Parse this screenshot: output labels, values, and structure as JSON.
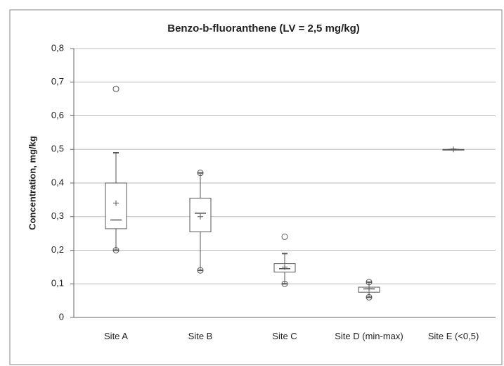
{
  "chart_data": {
    "type": "box",
    "title": "Benzo-b-fluoranthene (LV = 2,5 mg/kg)",
    "y_label": "Concentration, mg/kg",
    "categories": [
      "Site A",
      "Site B",
      "Site C",
      "Site D (min-max)",
      "Site E (<0,5)"
    ],
    "boxes": [
      {
        "min": 0.2,
        "q1": 0.264,
        "median": 0.29,
        "q3": 0.4,
        "max": 0.49,
        "mean": 0.34,
        "outliers": [
          0.68,
          0.2
        ]
      },
      {
        "min": 0.14,
        "q1": 0.255,
        "median": 0.31,
        "q3": 0.355,
        "max": 0.43,
        "mean": 0.3,
        "outliers": [
          0.43,
          0.14
        ]
      },
      {
        "min": 0.1,
        "q1": 0.135,
        "median": 0.145,
        "q3": 0.16,
        "max": 0.19,
        "mean": 0.15,
        "outliers": [
          0.24,
          0.1
        ]
      },
      {
        "min": 0.06,
        "q1": 0.075,
        "median": 0.085,
        "q3": 0.09,
        "max": 0.105,
        "mean": 0.085,
        "outliers": [
          0.105,
          0.06
        ]
      },
      {
        "min": 0.5,
        "q1": 0.5,
        "median": 0.5,
        "q3": 0.5,
        "max": 0.5,
        "mean": 0.5,
        "outliers": []
      }
    ],
    "color": "#555555",
    "ylim": [
      0,
      0.8
    ],
    "yticks": [
      0,
      {
        "value": 0.1,
        "label": "0,1"
      },
      {
        "value": 0.2,
        "label": "0,2"
      },
      {
        "value": 0.3,
        "label": "0,3"
      },
      {
        "value": 0.4,
        "label": "0,4"
      },
      {
        "value": 0.5,
        "label": "0,5"
      },
      {
        "value": 0.6,
        "label": "0,6"
      },
      {
        "value": 0.7,
        "label": "0,7"
      },
      {
        "value": 0.8,
        "label": "0,8"
      }
    ],
    "grid": true
  }
}
